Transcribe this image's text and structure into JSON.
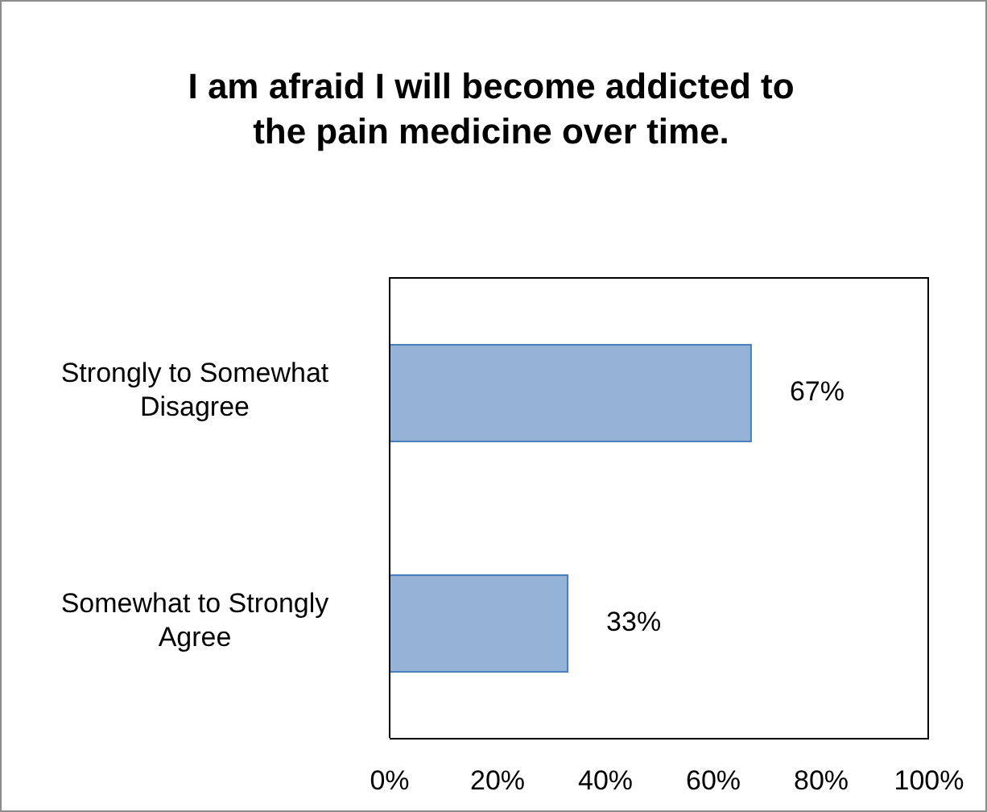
{
  "chart_data": {
    "type": "bar",
    "orientation": "horizontal",
    "title": "I am afraid I will become addicted to the pain medicine over time.",
    "categories": [
      "Strongly to Somewhat Disagree",
      "Somewhat to Strongly Agree"
    ],
    "values": [
      67,
      33
    ],
    "color": "#95b3d7",
    "value_labels": [
      "67%",
      "33%"
    ],
    "xlim": [
      0,
      100
    ],
    "xticks": [
      {
        "value": 0,
        "label": "0%"
      },
      {
        "value": 20,
        "label": "20%"
      },
      {
        "value": 40,
        "label": "40%"
      },
      {
        "value": 60,
        "label": "60%"
      },
      {
        "value": 80,
        "label": "80%"
      },
      {
        "value": 100,
        "label": "100%"
      }
    ],
    "grid": false,
    "legend": false
  }
}
